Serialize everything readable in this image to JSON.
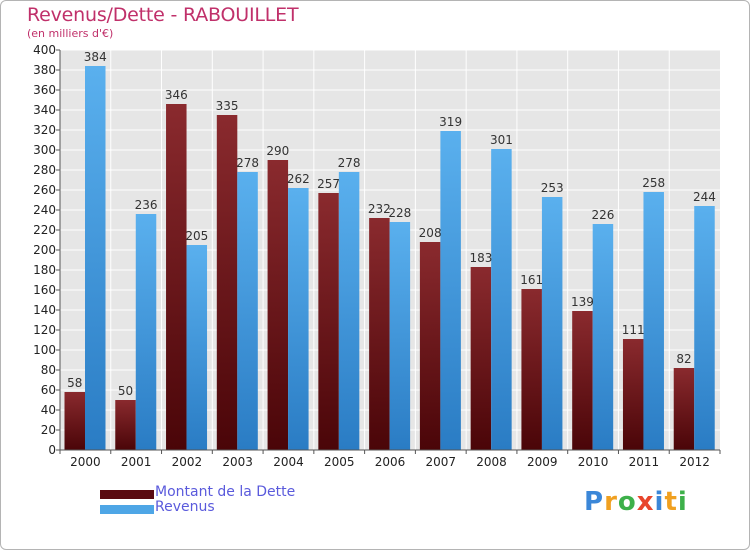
{
  "title": "Revenus/Dette - RABOUILLET",
  "subtitle": "(en milliers d'€)",
  "colors": {
    "debt": "#7d1a1f",
    "debt_dark": "#4a0508",
    "revenue": "#4ea6e6",
    "revenue_dark": "#2a7cc4",
    "title": "#c0306a",
    "legend_text": "#5a5adc"
  },
  "chart_data": {
    "type": "bar",
    "title": "Revenus/Dette - RABOUILLET",
    "ylabel": "(en milliers d'€)",
    "xlabel": "",
    "ylim": [
      0,
      400
    ],
    "ytick_step": 20,
    "grid": true,
    "legend_position": "bottom-left",
    "categories": [
      "2000",
      "2001",
      "2002",
      "2003",
      "2004",
      "2005",
      "2006",
      "2007",
      "2008",
      "2009",
      "2010",
      "2011",
      "2012"
    ],
    "series": [
      {
        "name": "Montant de la Dette",
        "values": [
          58,
          50,
          346,
          335,
          290,
          257,
          232,
          208,
          183,
          161,
          139,
          111,
          82
        ]
      },
      {
        "name": "Revenus",
        "values": [
          384,
          236,
          205,
          278,
          262,
          278,
          228,
          319,
          301,
          253,
          226,
          258,
          244
        ]
      }
    ]
  },
  "legend": {
    "debt_label": "Montant de la Dette",
    "revenue_label": "Revenus"
  },
  "logo": {
    "letters": [
      "P",
      "r",
      "o",
      "x",
      "i",
      "t",
      "i"
    ]
  }
}
